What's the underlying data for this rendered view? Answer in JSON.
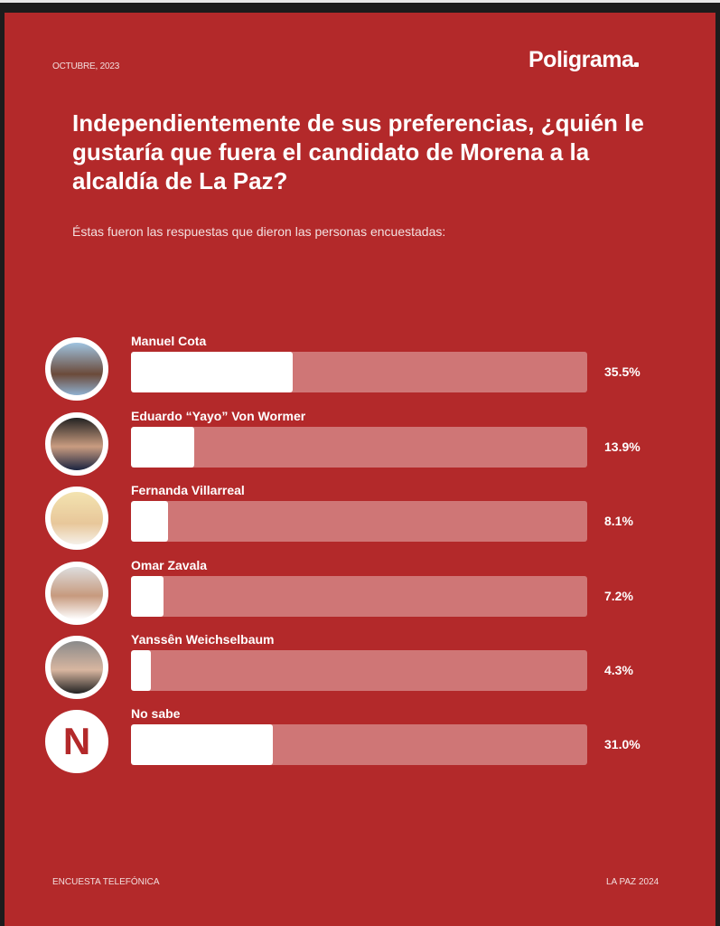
{
  "header": {
    "date": "OCTUBRE, 2023",
    "brand": "Poligrama"
  },
  "title": "Independientemente de sus preferencias, ¿quién le gustaría que fuera el candidato de Morena a la alcaldía de La Paz?",
  "subtitle": "Éstas fueron las respuestas que dieron las personas encuestadas:",
  "footer": {
    "left": "ENCUESTA TELEFÓNICA",
    "right": "LA PAZ 2024"
  },
  "colors": {
    "background": "#b3292a",
    "track": "#cf7676",
    "fill": "#ffffff"
  },
  "chart_data": {
    "type": "bar",
    "orientation": "horizontal",
    "categories": [
      "Manuel Cota",
      "Eduardo “Yayo” Von Wormer",
      "Fernanda Villarreal",
      "Omar Zavala",
      "Yanssên Weichselbaum",
      "No sabe"
    ],
    "values": [
      35.5,
      13.9,
      8.1,
      7.2,
      4.3,
      31.0
    ],
    "labels": [
      "35.5%",
      "13.9%",
      "8.1%",
      "7.2%",
      "4.3%",
      "31.0%"
    ],
    "xlim": [
      0,
      100
    ],
    "avatar_letter_no_sabe": "N"
  }
}
